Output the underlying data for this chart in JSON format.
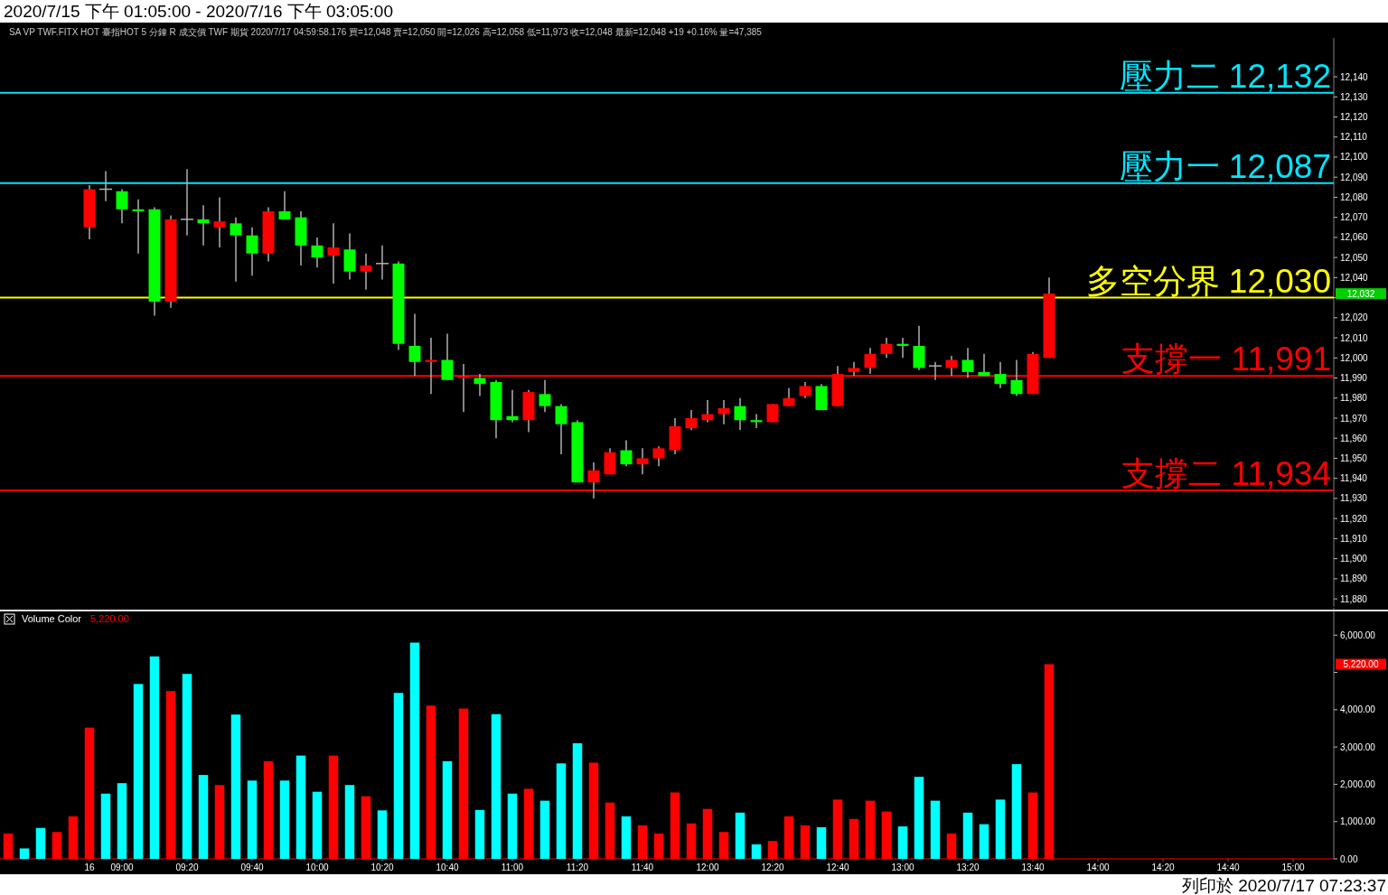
{
  "chart_data": [
    {
      "type": "candlestick",
      "title": "2020/7/15 下午 01:05:00 - 2020/7/16 下午 03:05:00",
      "subtitle": "SA  VP  TWF.FITX HOT  臺指HOT 5 分鐘  R  成交價  TWF  期貨  2020/7/17  04:59:58.176  買=12,048  賣=12,050  開=12,026  高=12,058  低=11,973  收=12,048  最新=12,048  +19  +0.16%  量=47,385",
      "ohlc": [
        null,
        null,
        null,
        null,
        null,
        [
          12065,
          12086,
          12059,
          12084
        ],
        [
          12084,
          12093,
          12078,
          12084
        ],
        [
          12083,
          12084,
          12067,
          12074
        ],
        [
          12074,
          12079,
          12052,
          12073
        ],
        [
          12074,
          12075,
          12021,
          12028
        ],
        [
          12028,
          12071,
          12025,
          12069
        ],
        [
          12069,
          12094,
          12061,
          12069
        ],
        [
          12069,
          12076,
          12056,
          12067
        ],
        [
          12065,
          12080,
          12055,
          12068
        ],
        [
          12067,
          12070,
          12038,
          12061
        ],
        [
          12061,
          12065,
          12041,
          12052
        ],
        [
          12052,
          12075,
          12048,
          12073
        ],
        [
          12073,
          12083,
          12069,
          12069
        ],
        [
          12070,
          12073,
          12046,
          12056
        ],
        [
          12056,
          12060,
          12045,
          12050
        ],
        [
          12051,
          12067,
          12037,
          12055
        ],
        [
          12054,
          12062,
          12039,
          12043
        ],
        [
          12043,
          12052,
          12034,
          12046
        ],
        [
          12047,
          12056,
          12039,
          12047
        ],
        [
          12047,
          12048,
          12004,
          12007
        ],
        [
          12006,
          12022,
          11991,
          11998
        ],
        [
          11998,
          12010,
          11982,
          11999
        ],
        [
          11999,
          12012,
          11989,
          11989
        ],
        [
          11990,
          11997,
          11973,
          11991
        ],
        [
          11990,
          11992,
          11981,
          11987
        ],
        [
          11988,
          11989,
          11960,
          11969
        ],
        [
          11971,
          11984,
          11968,
          11969
        ],
        [
          11969,
          11984,
          11963,
          11983
        ],
        [
          11982,
          11989,
          11973,
          11976
        ],
        [
          11976,
          11977,
          11952,
          11967
        ],
        [
          11968,
          11969,
          11938,
          11938
        ],
        [
          11938,
          11948,
          11930,
          11944
        ],
        [
          11942,
          11955,
          11942,
          11953
        ],
        [
          11954,
          11959,
          11946,
          11947
        ],
        [
          11947,
          11955,
          11942,
          11950
        ],
        [
          11950,
          11956,
          11946,
          11955
        ],
        [
          11954,
          11970,
          11952,
          11966
        ],
        [
          11965,
          11974,
          11964,
          11970
        ],
        [
          11969,
          11979,
          11968,
          11972
        ],
        [
          11972,
          11979,
          11967,
          11975
        ],
        [
          11976,
          11980,
          11964,
          11969
        ],
        [
          11969,
          11972,
          11965,
          11968
        ],
        [
          11968,
          11977,
          11968,
          11977
        ],
        [
          11976,
          11985,
          11976,
          11980
        ],
        [
          11981,
          11988,
          11980,
          11986
        ],
        [
          11986,
          11987,
          11974,
          11974
        ],
        [
          11976,
          11996,
          11976,
          11992
        ],
        [
          11993,
          11998,
          11991,
          11995
        ],
        [
          11995,
          12005,
          11992,
          12002
        ],
        [
          12002,
          12010,
          12000,
          12007
        ],
        [
          12007,
          12010,
          12000,
          12006
        ],
        [
          12006,
          12016,
          11994,
          11995
        ],
        [
          11996,
          11998,
          11989,
          11996
        ],
        [
          11995,
          12001,
          11991,
          11999
        ],
        [
          11999,
          12005,
          11990,
          11993
        ],
        [
          11993,
          12002,
          11991,
          11991
        ],
        [
          11992,
          11998,
          11985,
          11987
        ],
        [
          11989,
          11999,
          11981,
          11982
        ],
        [
          11982,
          12003,
          11982,
          12002
        ],
        [
          12000,
          12040,
          12000,
          12032
        ],
        null,
        null,
        null,
        null,
        null,
        null,
        null,
        null,
        null,
        null,
        null,
        null,
        null,
        null,
        null,
        null,
        null
      ],
      "colors": [
        null,
        null,
        null,
        null,
        null,
        "#ff0000",
        "#b0b0b0",
        "#00ff00",
        "#00ff00",
        "#00ff00",
        "#ff0000",
        "#b0b0b0",
        "#00ff00",
        "#ff0000",
        "#00ff00",
        "#00ff00",
        "#ff0000",
        "#00ff00",
        "#00ff00",
        "#00ff00",
        "#ff0000",
        "#00ff00",
        "#ff0000",
        "#b0b0b0",
        "#00ff00",
        "#00ff00",
        "#ff0000",
        "#00ff00",
        "#ff0000",
        "#00ff00",
        "#00ff00",
        "#00ff00",
        "#ff0000",
        "#00ff00",
        "#00ff00",
        "#00ff00",
        "#ff0000",
        "#ff0000",
        "#00ff00",
        "#ff0000",
        "#ff0000",
        "#ff0000",
        "#ff0000",
        "#ff0000",
        "#ff0000",
        "#00ff00",
        "#00ff00",
        "#ff0000",
        "#ff0000",
        "#ff0000",
        "#00ff00",
        "#ff0000",
        "#ff0000",
        "#ff0000",
        "#ff0000",
        "#00ff00",
        "#00ff00",
        "#b0b0b0",
        "#ff0000",
        "#00ff00",
        "#00ff00",
        "#00ff00",
        "#00ff00",
        "#ff0000",
        "#ff0000",
        null,
        null,
        null,
        null,
        null,
        null,
        null,
        null,
        null,
        null,
        null,
        null,
        null,
        null,
        null,
        null,
        null
      ],
      "ylim": [
        11876,
        12158
      ],
      "yticks": [
        {
          "value": 11880,
          "label": "11,880"
        },
        {
          "value": 11890,
          "label": "11,890"
        },
        {
          "value": 11900,
          "label": "11,900"
        },
        {
          "value": 11910,
          "label": "11,910"
        },
        {
          "value": 11920,
          "label": "11,920"
        },
        {
          "value": 11930,
          "label": "11,930"
        },
        {
          "value": 11940,
          "label": "11,940"
        },
        {
          "value": 11950,
          "label": "11,950"
        },
        {
          "value": 11960,
          "label": "11,960"
        },
        {
          "value": 11970,
          "label": "11,970"
        },
        {
          "value": 11980,
          "label": "11,980"
        },
        {
          "value": 11990,
          "label": "11,990"
        },
        {
          "value": 12000,
          "label": "12,000"
        },
        {
          "value": 12010,
          "label": "12,010"
        },
        {
          "value": 12020,
          "label": "12,020"
        },
        {
          "value": 12030,
          "label": null
        },
        {
          "value": 12040,
          "label": "12,040"
        },
        {
          "value": 12050,
          "label": "12,050"
        },
        {
          "value": 12060,
          "label": "12,060"
        },
        {
          "value": 12070,
          "label": "12,070"
        },
        {
          "value": 12080,
          "label": "12,080"
        },
        {
          "value": 12090,
          "label": "12,090"
        },
        {
          "value": 12100,
          "label": "12,100"
        },
        {
          "value": 12110,
          "label": "12,110"
        },
        {
          "value": 12120,
          "label": "12,120"
        },
        {
          "value": 12130,
          "label": "12,130"
        },
        {
          "value": 12140,
          "label": "12,140"
        }
      ],
      "tick_labels": "y",
      "ref_lines": [
        {
          "axis": "y",
          "value": 12132,
          "label": "壓力二 12,132",
          "color": "#00e5ff"
        },
        {
          "axis": "y",
          "value": 12087,
          "label": "壓力一 12,087",
          "color": "#00e5ff"
        },
        {
          "axis": "y",
          "value": 12030,
          "label": "多空分界 12,030",
          "color": "#ffff00"
        },
        {
          "axis": "y",
          "value": 11991,
          "label": "支撐一 11,991",
          "color": "#ff0000"
        },
        {
          "axis": "y",
          "value": 11934,
          "label": "支撐二 11,934",
          "color": "#ff0000"
        }
      ],
      "annotations": [
        "12,032",
        "列印於 2020/7/17 07:23:37"
      ]
    },
    {
      "type": "bar",
      "title": "Volume Color",
      "categories": [
        null,
        null,
        null,
        null,
        null,
        "16",
        null,
        "09:00",
        null,
        null,
        null,
        "09:20",
        null,
        null,
        null,
        "09:40",
        null,
        null,
        null,
        "10:00",
        null,
        null,
        null,
        "10:20",
        null,
        null,
        null,
        "10:40",
        null,
        null,
        null,
        "11:00",
        null,
        null,
        null,
        "11:20",
        null,
        null,
        null,
        "11:40",
        null,
        null,
        null,
        "12:00",
        null,
        null,
        null,
        "12:20",
        null,
        null,
        null,
        "12:40",
        null,
        null,
        null,
        "13:00",
        null,
        null,
        null,
        "13:20",
        null,
        null,
        null,
        "13:40",
        null,
        null,
        null,
        "14:00",
        null,
        null,
        null,
        "14:20",
        null,
        null,
        null,
        "14:40",
        null,
        null,
        null,
        "15:00",
        null,
        null
      ],
      "values": [
        680,
        280,
        830,
        720,
        1140,
        3520,
        1750,
        2030,
        4690,
        5430,
        4500,
        4960,
        2250,
        1980,
        3870,
        2100,
        2620,
        2100,
        2770,
        1800,
        2770,
        1980,
        1680,
        1300,
        4450,
        5800,
        4110,
        2620,
        4030,
        1310,
        3880,
        1750,
        1880,
        1560,
        2560,
        3100,
        2580,
        1510,
        1140,
        900,
        680,
        1780,
        950,
        1340,
        720,
        1240,
        390,
        480,
        1140,
        900,
        850,
        1590,
        1070,
        1560,
        1270,
        870,
        2200,
        1560,
        680,
        1240,
        930,
        1590,
        2540,
        1780,
        5220,
        null,
        null,
        null,
        null,
        null,
        null,
        null,
        null,
        null,
        null,
        null,
        null,
        null,
        null,
        null,
        null,
        null
      ],
      "colors": [
        "#ff0000",
        "#00ffff",
        "#00ffff",
        "#ff0000",
        "#ff0000",
        "#ff0000",
        "#00ffff",
        "#00ffff",
        "#00ffff",
        "#00ffff",
        "#ff0000",
        "#00ffff",
        "#00ffff",
        "#ff0000",
        "#00ffff",
        "#00ffff",
        "#ff0000",
        "#00ffff",
        "#00ffff",
        "#00ffff",
        "#ff0000",
        "#00ffff",
        "#ff0000",
        "#00ffff",
        "#00ffff",
        "#00ffff",
        "#ff0000",
        "#00ffff",
        "#ff0000",
        "#00ffff",
        "#00ffff",
        "#00ffff",
        "#ff0000",
        "#00ffff",
        "#00ffff",
        "#00ffff",
        "#ff0000",
        "#ff0000",
        "#00ffff",
        "#ff0000",
        "#ff0000",
        "#ff0000",
        "#ff0000",
        "#ff0000",
        "#ff0000",
        "#00ffff",
        "#00ffff",
        "#ff0000",
        "#ff0000",
        "#ff0000",
        "#00ffff",
        "#ff0000",
        "#ff0000",
        "#ff0000",
        "#ff0000",
        "#00ffff",
        "#00ffff",
        "#00ffff",
        "#ff0000",
        "#00ffff",
        "#00ffff",
        "#00ffff",
        "#00ffff",
        "#ff0000",
        "#ff0000",
        null,
        null,
        null,
        null,
        null,
        null,
        null,
        null,
        null,
        null,
        null,
        null,
        null,
        null,
        null,
        null,
        null
      ],
      "ylim": [
        0,
        6660
      ],
      "yticks": [
        {
          "value": 0,
          "label": "0.00"
        },
        {
          "value": 1000,
          "label": "1,000.00"
        },
        {
          "value": 2000,
          "label": "2,000.00"
        },
        {
          "value": 3000,
          "label": "3,000.00"
        },
        {
          "value": 4000,
          "label": "4,000.00"
        },
        {
          "value": 5000,
          "label": null
        },
        {
          "value": 6000,
          "label": "6,000.00"
        }
      ],
      "annotations": [
        "5,220.00",
        "5,220.00"
      ]
    }
  ]
}
